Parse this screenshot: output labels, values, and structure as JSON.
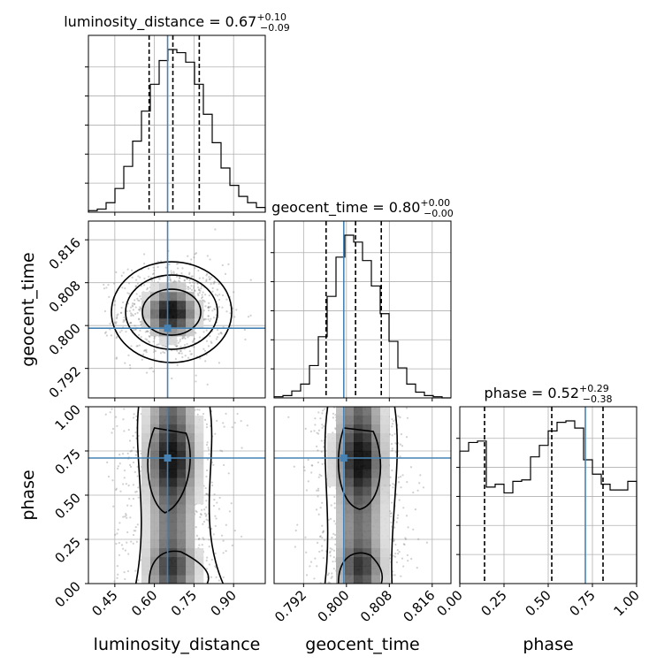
{
  "titles": {
    "luminosity_distance": {
      "name": "luminosity_distance",
      "value": "0.67",
      "plus": "+0.10",
      "minus": "−0.09"
    },
    "geocent_time": {
      "name": "geocent_time",
      "value": "0.80",
      "plus": "+0.00",
      "minus": "−0.00"
    },
    "phase": {
      "name": "phase",
      "value": "0.52",
      "plus": "+0.29",
      "minus": "−0.38"
    }
  },
  "axis_labels": {
    "x": [
      "luminosity_distance",
      "geocent_time",
      "phase"
    ],
    "y": [
      "geocent_time",
      "phase"
    ]
  },
  "chart_data": {
    "type": "corner",
    "parameters": [
      "luminosity_distance",
      "geocent_time",
      "phase"
    ],
    "ranges": {
      "luminosity_distance": [
        0.35,
        1.02
      ],
      "geocent_time": [
        0.7865,
        0.8195
      ],
      "phase": [
        0.0,
        1.0
      ]
    },
    "ticks": {
      "luminosity_distance": [
        0.45,
        0.6,
        0.75,
        0.9
      ],
      "geocent_time": [
        0.792,
        0.8,
        0.808,
        0.816
      ],
      "phase": [
        0.0,
        0.25,
        0.5,
        0.75,
        1.0
      ]
    },
    "tick_labels": {
      "luminosity_distance": [
        "0.45",
        "0.60",
        "0.75",
        "0.90"
      ],
      "geocent_time": [
        "0.792",
        "0.800",
        "0.808",
        "0.816"
      ],
      "phase": [
        "0.00",
        "0.25",
        "0.50",
        "0.75",
        "1.00"
      ]
    },
    "truths": {
      "luminosity_distance": 0.65,
      "geocent_time": 0.7995,
      "phase": 0.71
    },
    "quantiles": {
      "luminosity_distance": [
        0.58,
        0.67,
        0.77
      ],
      "geocent_time": [
        0.7962,
        0.8017,
        0.8065
      ],
      "phase": [
        0.14,
        0.52,
        0.81
      ]
    },
    "histograms": {
      "luminosity_distance": [
        1,
        2,
        6,
        15,
        29,
        45,
        64,
        81,
        96,
        103,
        101,
        95,
        81,
        62,
        44,
        28,
        17,
        10,
        6,
        3
      ],
      "geocent_time": [
        1,
        2,
        6,
        12,
        28,
        53,
        88,
        122,
        141,
        135,
        119,
        97,
        73,
        49,
        26,
        12,
        5,
        2,
        1,
        0
      ],
      "phase": [
        92,
        98,
        99,
        67,
        69,
        63,
        71,
        72,
        88,
        96,
        106,
        112,
        113,
        108,
        86,
        76,
        69,
        65,
        65,
        71
      ]
    }
  }
}
